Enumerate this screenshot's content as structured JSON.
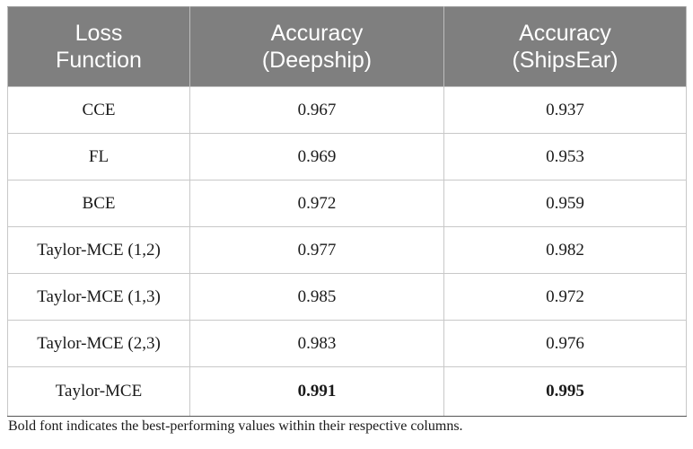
{
  "table": {
    "headers": [
      [
        "Loss",
        "Function"
      ],
      [
        "Accuracy",
        "(Deepship)"
      ],
      [
        "Accuracy",
        "(ShipsEar)"
      ]
    ],
    "rows": [
      {
        "loss": "CCE",
        "deepship": "0.967",
        "shipsear": "0.937"
      },
      {
        "loss": "FL",
        "deepship": "0.969",
        "shipsear": "0.953"
      },
      {
        "loss": "BCE",
        "deepship": "0.972",
        "shipsear": "0.959"
      },
      {
        "loss": "Taylor-MCE (1,2)",
        "deepship": "0.977",
        "shipsear": "0.982"
      },
      {
        "loss": "Taylor-MCE (1,3)",
        "deepship": "0.985",
        "shipsear": "0.972"
      },
      {
        "loss": "Taylor-MCE (2,3)",
        "deepship": "0.983",
        "shipsear": "0.976"
      },
      {
        "loss": "Taylor-MCE",
        "deepship": "0.991",
        "shipsear": "0.995"
      }
    ],
    "bold_best": {
      "deepship": "0.991",
      "shipsear": "0.995"
    }
  },
  "footnote": "Bold font indicates the best-performing values within their respective columns."
}
